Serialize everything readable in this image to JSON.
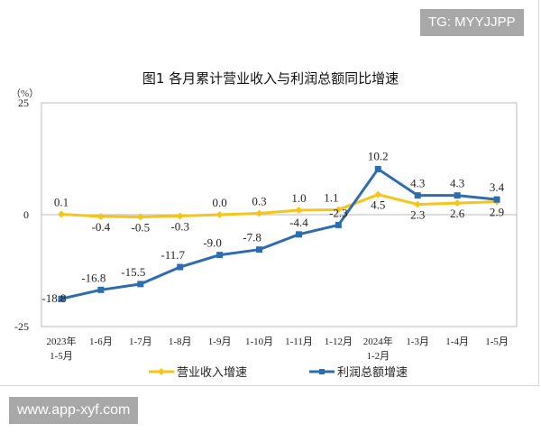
{
  "watermarks": {
    "top": "TG: MYYJJPP",
    "bottom": "www.app-xyf.com"
  },
  "chart_data": {
    "type": "line",
    "title": "图1  各月累计营业收入与利润总额同比增速",
    "ylabel": "（%）",
    "ylim": [
      -25,
      25
    ],
    "yticks": [
      "25",
      "0",
      "-25"
    ],
    "categories": [
      [
        "2023年",
        "1-5月"
      ],
      [
        "1-6月"
      ],
      [
        "1-7月"
      ],
      [
        "1-8月"
      ],
      [
        "1-9月"
      ],
      [
        "1-10月"
      ],
      [
        "1-11月"
      ],
      [
        "1-12月"
      ],
      [
        "2024年",
        "1-2月"
      ],
      [
        "1-3月"
      ],
      [
        "1-4月"
      ],
      [
        "1-5月"
      ]
    ],
    "grid": false,
    "legend": "bottom",
    "series": [
      {
        "name": "营业收入增速",
        "color": "#f5c518",
        "marker": "diamond",
        "values": [
          0.1,
          -0.4,
          -0.5,
          -0.3,
          0.0,
          0.3,
          1.0,
          1.1,
          4.5,
          2.3,
          2.6,
          2.9
        ],
        "labels": [
          "0.1",
          "-0.4",
          "-0.5",
          "-0.3",
          "0.0",
          "0.3",
          "1.0",
          "1.1",
          "4.5",
          "2.3",
          "2.6",
          "2.9"
        ]
      },
      {
        "name": "利润总额增速",
        "color": "#2e6cb0",
        "marker": "square",
        "values": [
          -18.8,
          -16.8,
          -15.5,
          -11.7,
          -9.0,
          -7.8,
          -4.4,
          -2.3,
          10.2,
          4.3,
          4.3,
          3.4
        ],
        "labels": [
          "-18.8",
          "-16.8",
          "-15.5",
          "-11.7",
          "-9.0",
          "-7.8",
          "-4.4",
          "-2.3",
          "10.2",
          "4.3",
          "4.3",
          "3.4"
        ]
      }
    ]
  }
}
